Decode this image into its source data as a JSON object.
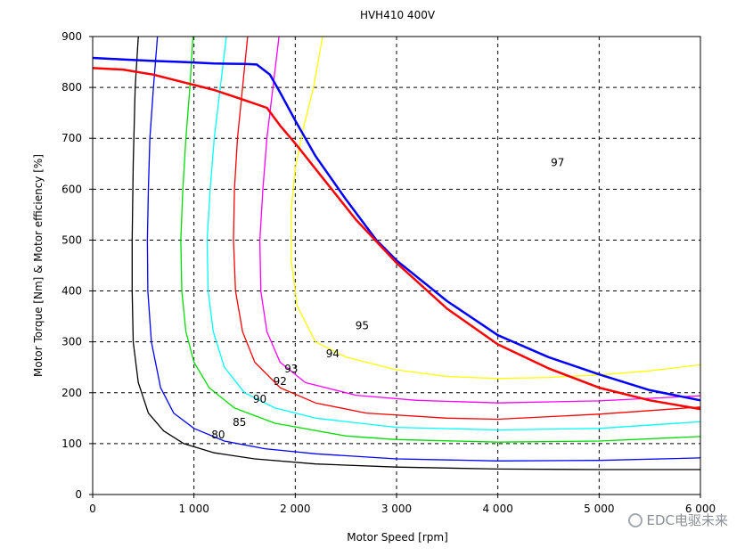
{
  "chart_data": {
    "type": "line",
    "title": "HVH410 400V",
    "xlabel": "Motor Speed [rpm]",
    "ylabel": "Motor Torque [Nm] & Motor efficiency [%]",
    "xlim": [
      0,
      6000
    ],
    "ylim": [
      0,
      900
    ],
    "x_ticks": [
      "0",
      "1 000",
      "2 000",
      "3 000",
      "4 000",
      "5 000",
      "6 000"
    ],
    "y_ticks": [
      "0",
      "100",
      "200",
      "300",
      "400",
      "500",
      "600",
      "700",
      "800",
      "900"
    ],
    "grid": true,
    "series": [
      {
        "key": "max_torque_blue",
        "color": "#0000ff",
        "width": 2.5,
        "points": [
          [
            0,
            858
          ],
          [
            300,
            855
          ],
          [
            600,
            852
          ],
          [
            900,
            850
          ],
          [
            1200,
            847
          ],
          [
            1500,
            846
          ],
          [
            1620,
            845
          ],
          [
            1750,
            825
          ],
          [
            1850,
            790
          ],
          [
            2000,
            735
          ],
          [
            2200,
            665
          ],
          [
            2500,
            580
          ],
          [
            2800,
            500
          ],
          [
            3000,
            460
          ],
          [
            3500,
            380
          ],
          [
            4000,
            313
          ],
          [
            4500,
            270
          ],
          [
            5000,
            236
          ],
          [
            5500,
            205
          ],
          [
            6000,
            185
          ]
        ]
      },
      {
        "key": "max_torque_red",
        "color": "#ff0000",
        "width": 2.5,
        "points": [
          [
            0,
            838
          ],
          [
            300,
            835
          ],
          [
            600,
            825
          ],
          [
            900,
            810
          ],
          [
            1200,
            795
          ],
          [
            1500,
            775
          ],
          [
            1720,
            760
          ],
          [
            1850,
            725
          ],
          [
            2000,
            690
          ],
          [
            2300,
            615
          ],
          [
            2600,
            540
          ],
          [
            3000,
            455
          ],
          [
            3500,
            365
          ],
          [
            4000,
            295
          ],
          [
            4500,
            248
          ],
          [
            5000,
            210
          ],
          [
            5500,
            185
          ],
          [
            6000,
            168
          ]
        ]
      }
    ],
    "efficiency_contours": [
      {
        "level": "80",
        "color": "#000000",
        "points": [
          [
            450,
            900
          ],
          [
            420,
            800
          ],
          [
            400,
            650
          ],
          [
            390,
            500
          ],
          [
            390,
            400
          ],
          [
            400,
            300
          ],
          [
            450,
            220
          ],
          [
            550,
            160
          ],
          [
            700,
            125
          ],
          [
            900,
            100
          ],
          [
            1200,
            82
          ],
          [
            1600,
            70
          ],
          [
            2200,
            60
          ],
          [
            3000,
            54
          ],
          [
            4000,
            50
          ],
          [
            5000,
            49
          ],
          [
            6000,
            49
          ]
        ]
      },
      {
        "level": "85",
        "color": "#0000ff",
        "points": [
          [
            640,
            900
          ],
          [
            600,
            800
          ],
          [
            565,
            700
          ],
          [
            550,
            600
          ],
          [
            540,
            500
          ],
          [
            545,
            400
          ],
          [
            580,
            300
          ],
          [
            670,
            210
          ],
          [
            800,
            160
          ],
          [
            1000,
            130
          ],
          [
            1300,
            105
          ],
          [
            1700,
            90
          ],
          [
            2200,
            80
          ],
          [
            3000,
            70
          ],
          [
            4000,
            66
          ],
          [
            5000,
            67
          ],
          [
            6000,
            72
          ]
        ]
      },
      {
        "level": "90",
        "color": "#00dd00",
        "points": [
          [
            990,
            900
          ],
          [
            960,
            800
          ],
          [
            920,
            700
          ],
          [
            890,
            600
          ],
          [
            870,
            500
          ],
          [
            880,
            400
          ],
          [
            920,
            320
          ],
          [
            1000,
            260
          ],
          [
            1150,
            210
          ],
          [
            1400,
            170
          ],
          [
            1800,
            140
          ],
          [
            2500,
            115
          ],
          [
            3000,
            108
          ],
          [
            4000,
            103
          ],
          [
            5000,
            105
          ],
          [
            6000,
            114
          ]
        ]
      },
      {
        "level": "92",
        "color": "#00ffff",
        "points": [
          [
            1320,
            900
          ],
          [
            1260,
            800
          ],
          [
            1200,
            700
          ],
          [
            1160,
            600
          ],
          [
            1130,
            500
          ],
          [
            1140,
            400
          ],
          [
            1190,
            320
          ],
          [
            1300,
            250
          ],
          [
            1500,
            200
          ],
          [
            1800,
            170
          ],
          [
            2200,
            150
          ],
          [
            3000,
            132
          ],
          [
            4000,
            127
          ],
          [
            5000,
            130
          ],
          [
            6000,
            143
          ]
        ]
      },
      {
        "level": "93",
        "color": "#ff0000",
        "points": [
          [
            1530,
            900
          ],
          [
            1480,
            800
          ],
          [
            1430,
            700
          ],
          [
            1400,
            600
          ],
          [
            1390,
            500
          ],
          [
            1410,
            400
          ],
          [
            1480,
            320
          ],
          [
            1600,
            260
          ],
          [
            1850,
            210
          ],
          [
            2200,
            180
          ],
          [
            2700,
            160
          ],
          [
            3500,
            150
          ],
          [
            4000,
            148
          ],
          [
            5000,
            158
          ],
          [
            6000,
            172
          ]
        ]
      },
      {
        "level": "94",
        "color": "#ff00ff",
        "points": [
          [
            1840,
            900
          ],
          [
            1780,
            800
          ],
          [
            1720,
            700
          ],
          [
            1680,
            600
          ],
          [
            1650,
            500
          ],
          [
            1660,
            400
          ],
          [
            1720,
            320
          ],
          [
            1850,
            260
          ],
          [
            2100,
            220
          ],
          [
            2600,
            195
          ],
          [
            3200,
            185
          ],
          [
            4000,
            180
          ],
          [
            5000,
            184
          ],
          [
            6000,
            194
          ]
        ]
      },
      {
        "level": "95",
        "color": "#ffff00",
        "points": [
          [
            2270,
            900
          ],
          [
            2180,
            800
          ],
          [
            2080,
            720
          ],
          [
            2000,
            640
          ],
          [
            1960,
            560
          ],
          [
            1960,
            460
          ],
          [
            2020,
            370
          ],
          [
            2200,
            300
          ],
          [
            2500,
            270
          ],
          [
            3000,
            245
          ],
          [
            3500,
            232
          ],
          [
            4000,
            228
          ],
          [
            4500,
            230
          ],
          [
            5000,
            235
          ],
          [
            5500,
            243
          ],
          [
            6000,
            255
          ]
        ]
      }
    ],
    "contour_labels": [
      {
        "text": "80",
        "x": 1240,
        "y": 110
      },
      {
        "text": "85",
        "x": 1450,
        "y": 135
      },
      {
        "text": "90",
        "x": 1650,
        "y": 180
      },
      {
        "text": "92",
        "x": 1850,
        "y": 215
      },
      {
        "text": "93",
        "x": 1960,
        "y": 240
      },
      {
        "text": "94",
        "x": 2370,
        "y": 270
      },
      {
        "text": "95",
        "x": 2660,
        "y": 325
      },
      {
        "text": "97",
        "x": 4590,
        "y": 645
      }
    ]
  },
  "watermark": "EDC电驱未来"
}
